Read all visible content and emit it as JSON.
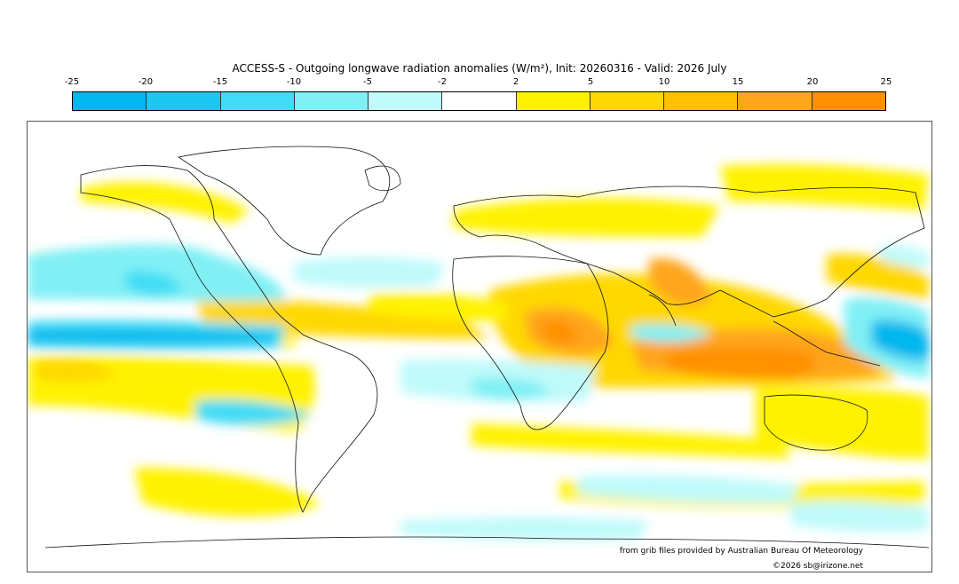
{
  "title": "ACCESS-S - Outgoing longwave radiation anomalies (W/m²), Init: 20260316 - Valid: 2026 July",
  "colorbar": {
    "ticks": [
      "-25",
      "-20",
      "-15",
      "-10",
      "-5",
      "-2",
      "2",
      "5",
      "10",
      "15",
      "20",
      "25"
    ],
    "colors": [
      "#00b7ee",
      "#1ac8f0",
      "#40dcf5",
      "#80f0f5",
      "#c0fafa",
      "#ffffff",
      "#fff200",
      "#ffd800",
      "#ffc000",
      "#ffa51e",
      "#ff9000"
    ]
  },
  "credit": "from grib files provided by Australian Bureau Of Meteorology",
  "copyright": "©2026 sb@irizone.net"
}
